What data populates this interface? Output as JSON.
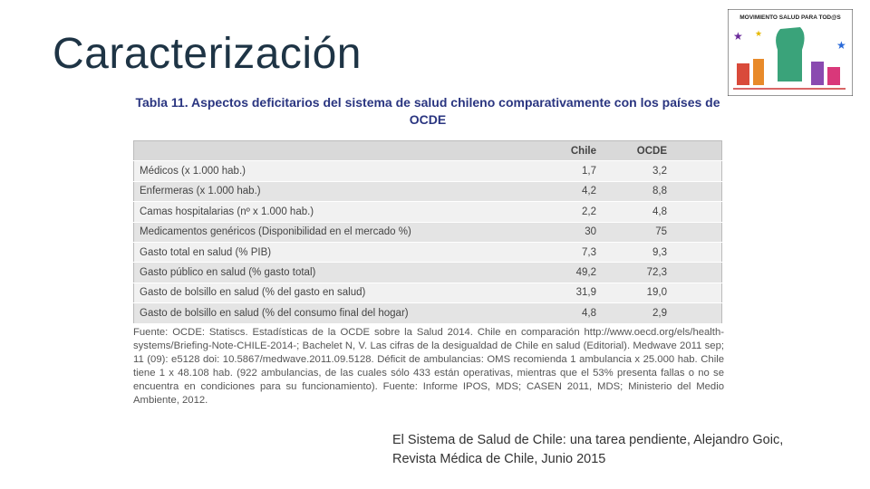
{
  "title": "Caracterización",
  "logo": {
    "text": "MOVIMIENTO SALUD PARA TOD@S"
  },
  "table": {
    "title": "Tabla 11. Aspectos deficitarios del sistema de salud chileno comparativamente con los países de OCDE",
    "header": [
      "Chile",
      "OCDE"
    ],
    "rows": [
      [
        "Médicos (x 1.000 hab.)",
        "1,7",
        "3,2"
      ],
      [
        "Enfermeras (x 1.000 hab.)",
        "4,2",
        "8,8"
      ],
      [
        "Camas hospitalarias (nº x 1.000 hab.)",
        "2,2",
        "4,8"
      ],
      [
        "Medicamentos genéricos (Disponibilidad en el mercado %)",
        "30",
        "75"
      ],
      [
        "Gasto total en salud (% PIB)",
        "7,3",
        "9,3"
      ],
      [
        "Gasto público en salud (% gasto total)",
        "49,2",
        "72,3"
      ],
      [
        "Gasto de bolsillo en salud (% del gasto en salud)",
        "31,9",
        "19,0"
      ],
      [
        "Gasto de bolsillo en salud (% del consumo final del hogar)",
        "4,8",
        "2,9"
      ]
    ],
    "footnote": "Fuente: OCDE: Statiscs. Estadísticas de la OCDE sobre la Salud 2014. Chile en comparación http://www.oecd.org/els/health-systems/Briefing-Note-CHILE-2014-; Bachelet N, V. Las cifras de la desigualdad de Chile en salud (Editorial). Medwave 2011 sep; 11 (09): e5128 doi: 10.5867/medwave.2011.09.5128. Déficit de ambulancias: OMS recomienda 1 ambulancia x 25.000 hab. Chile tiene 1 x 48.108 hab. (922 ambulancias, de las cuales sólo 433 están operativas, mientras que el 53% presenta fallas o no se encuentra en condiciones para su funcionamiento). Fuente: Informe IPOS, MDS; CASEN 2011, MDS; Ministerio del Medio Ambiente, 2012."
  },
  "citation": "El Sistema de Salud de Chile: una tarea pendiente, Alejandro Goic, Revista Médica de Chile, Junio 2015"
}
